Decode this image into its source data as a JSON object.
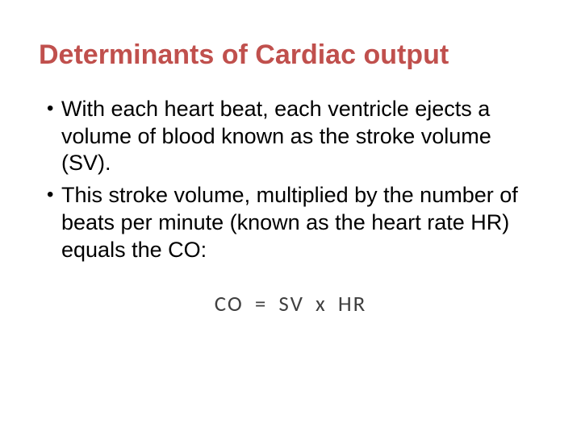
{
  "slide": {
    "background_color": "#ffffff",
    "title": {
      "text": "Determinants of Cardiac output",
      "color": "#c0504d",
      "font_size_pt": 34,
      "font_weight": "bold"
    },
    "bullets": [
      {
        "text": "With each heart beat, each ventricle ejects a volume of blood known as the stroke volume (SV)."
      },
      {
        "text": "This stroke volume, multiplied by the number of beats per minute (known as the heart rate HR) equals the CO:"
      }
    ],
    "bullet_style": {
      "color": "#000000",
      "font_size_pt": 27,
      "bullet_char": "•"
    },
    "formula": {
      "text": "CO   =  SV  x   HR",
      "color": "#404040",
      "font_size_pt": 27,
      "font_family": "Calibri"
    }
  }
}
